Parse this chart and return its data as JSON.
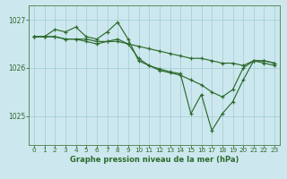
{
  "xlabel": "Graphe pression niveau de la mer (hPa)",
  "background_color": "#cce8ee",
  "grid_color": "#a8d0d8",
  "line_color": "#2d6a2d",
  "ylim": [
    1024.4,
    1027.3
  ],
  "yticks": [
    1025,
    1026,
    1027
  ],
  "xlim": [
    -0.5,
    23.5
  ],
  "xticks": [
    0,
    1,
    2,
    3,
    4,
    5,
    6,
    7,
    8,
    9,
    10,
    11,
    12,
    13,
    14,
    15,
    16,
    17,
    18,
    19,
    20,
    21,
    22,
    23
  ],
  "series": [
    [
      1026.65,
      1026.65,
      1026.65,
      1026.6,
      1026.6,
      1026.6,
      1026.55,
      1026.55,
      1026.55,
      1026.5,
      1026.45,
      1026.4,
      1026.35,
      1026.3,
      1026.25,
      1026.2,
      1026.2,
      1026.15,
      1026.1,
      1026.1,
      1026.05,
      1026.15,
      1026.15,
      1026.1
    ],
    [
      1026.65,
      1026.65,
      1026.8,
      1026.75,
      1026.85,
      1026.65,
      1026.6,
      1026.75,
      1026.95,
      1026.6,
      1026.15,
      1026.05,
      1025.98,
      1025.92,
      1025.88,
      1025.05,
      1025.45,
      1024.7,
      1025.05,
      1025.3,
      1025.75,
      1026.15,
      1026.15,
      1026.1
    ],
    [
      1026.65,
      1026.65,
      1026.65,
      1026.6,
      1026.6,
      1026.55,
      1026.5,
      1026.55,
      1026.6,
      1026.5,
      1026.2,
      1026.05,
      1025.95,
      1025.9,
      1025.85,
      1025.75,
      1025.65,
      1025.5,
      1025.4,
      1025.55,
      1026.0,
      1026.15,
      1026.1,
      1026.05
    ]
  ]
}
